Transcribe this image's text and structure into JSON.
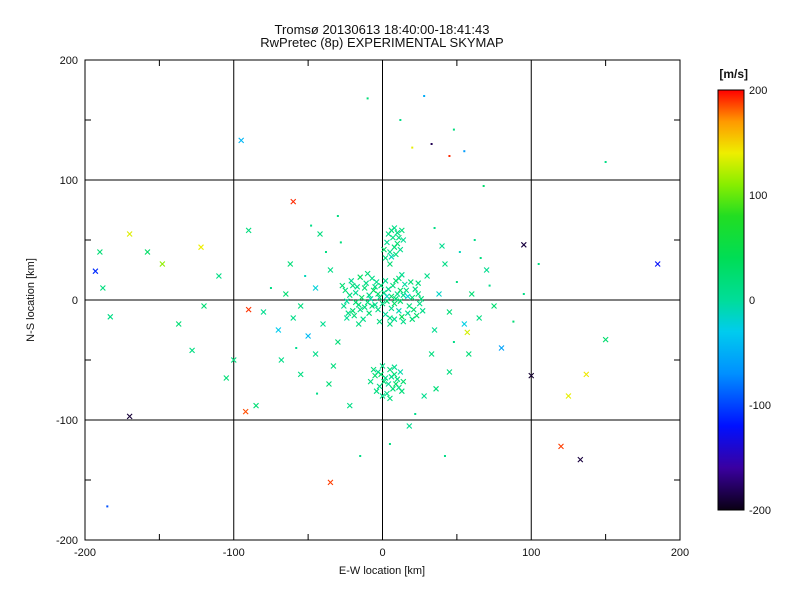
{
  "title": {
    "line1": "Tromsø 20130613 18:40:00-18:41:43",
    "line2": "RwPretec (8p) EXPERIMENTAL SKYMAP"
  },
  "plot": {
    "background": "#ffffff",
    "frame_color": "#000000",
    "xlabel": "E-W location [km]",
    "ylabel": "N-S location [km]",
    "x_tick_labels": [
      "-200",
      "-100",
      "0",
      "100",
      "200"
    ],
    "y_tick_labels": [
      "200",
      "100",
      "0",
      "-100",
      "-200"
    ]
  },
  "colorbar": {
    "title": "[m/s]",
    "title_color": "#cc0000",
    "tick_labels": [
      "200",
      "100",
      "0",
      "-100",
      "-200"
    ]
  },
  "chart_data": {
    "type": "scatter",
    "title": "Tromsø 20130613 18:40:00-18:41:43 / RwPretec (8p) EXPERIMENTAL SKYMAP",
    "xlabel": "E-W location [km]",
    "ylabel": "N-S location [km]",
    "xlim": [
      -200,
      200
    ],
    "ylim": [
      -200,
      200
    ],
    "grid_lines": [
      -100,
      0,
      100
    ],
    "major_ticks": [
      -200,
      -100,
      0,
      100,
      200
    ],
    "minor_tick_step": 50,
    "legend_position": "none",
    "color_scale": {
      "label": "[m/s]",
      "range": [
        -200,
        200
      ],
      "ticks": [
        200,
        100,
        0,
        -100,
        -200
      ],
      "stops": [
        {
          "value": -200,
          "color": "#0a0014"
        },
        {
          "value": -160,
          "color": "#3a00a0"
        },
        {
          "value": -120,
          "color": "#0010ff"
        },
        {
          "value": -70,
          "color": "#0090ff"
        },
        {
          "value": -30,
          "color": "#00ccee"
        },
        {
          "value": 0,
          "color": "#00dd99"
        },
        {
          "value": 40,
          "color": "#00dd55"
        },
        {
          "value": 80,
          "color": "#22dd22"
        },
        {
          "value": 110,
          "color": "#88ee00"
        },
        {
          "value": 140,
          "color": "#eeee00"
        },
        {
          "value": 170,
          "color": "#ff9900"
        },
        {
          "value": 200,
          "color": "#ff0000"
        }
      ]
    },
    "point_format": [
      "x_km",
      "y_km",
      "velocity_ms",
      "marker(1=cross,0=dot,default 1)"
    ],
    "points": [
      [
        -2,
        2,
        10
      ],
      [
        3,
        -1,
        22
      ],
      [
        -5,
        -4,
        5
      ],
      [
        1,
        6,
        15
      ],
      [
        6,
        3,
        28
      ],
      [
        -8,
        1,
        -5
      ],
      [
        -3,
        -8,
        12
      ],
      [
        8,
        -3,
        30
      ],
      [
        -10,
        -2,
        18
      ],
      [
        4,
        9,
        6
      ],
      [
        -1,
        12,
        20
      ],
      [
        10,
        5,
        12
      ],
      [
        -6,
        8,
        35
      ],
      [
        2,
        -12,
        0
      ],
      [
        -12,
        -6,
        16
      ],
      [
        12,
        -1,
        25
      ],
      [
        -4,
        15,
        8
      ],
      [
        7,
        12,
        18
      ],
      [
        -9,
        -11,
        22
      ],
      [
        14,
        4,
        5
      ],
      [
        -14,
        2,
        30
      ],
      [
        5,
        -15,
        12
      ],
      [
        -2,
        -18,
        16
      ],
      [
        11,
        -9,
        -8
      ],
      [
        -16,
        -4,
        20
      ],
      [
        9,
        16,
        26
      ],
      [
        -7,
        18,
        10
      ],
      [
        16,
        8,
        14
      ],
      [
        -18,
        6,
        4
      ],
      [
        13,
        -14,
        36
      ],
      [
        -11,
        14,
        12
      ],
      [
        18,
        -5,
        18
      ],
      [
        -20,
        -9,
        24
      ],
      [
        15,
        13,
        -2
      ],
      [
        -13,
        -16,
        10
      ],
      [
        20,
        2,
        20
      ],
      [
        -22,
        4,
        15
      ],
      [
        17,
        -11,
        6
      ],
      [
        -15,
        19,
        32
      ],
      [
        22,
        9,
        12
      ],
      [
        -19,
        -13,
        18
      ],
      [
        19,
        15,
        22
      ],
      [
        -24,
        -1,
        0
      ],
      [
        21,
        -8,
        26
      ],
      [
        -17,
        11,
        8
      ],
      [
        24,
        5,
        16
      ],
      [
        -21,
        16,
        5
      ],
      [
        23,
        -13,
        30
      ],
      [
        -25,
        8,
        20
      ],
      [
        25,
        -3,
        12
      ],
      [
        0,
        -3,
        14
      ],
      [
        -3,
        5,
        24
      ],
      [
        6,
        -7,
        8
      ],
      [
        -7,
        -5,
        18
      ],
      [
        3,
        3,
        -12
      ],
      [
        9,
        1,
        20
      ],
      [
        -5,
        11,
        14
      ],
      [
        2,
        16,
        6
      ],
      [
        12,
        8,
        28
      ],
      [
        -9,
        4,
        10
      ],
      [
        5,
        -20,
        16
      ],
      [
        -12,
        10,
        22
      ],
      [
        8,
        -16,
        4
      ],
      [
        -15,
        -8,
        14
      ],
      [
        11,
        18,
        18
      ],
      [
        -18,
        -2,
        26
      ],
      [
        14,
        -18,
        10
      ],
      [
        -20,
        12,
        16
      ],
      [
        17,
        3,
        -20
      ],
      [
        -23,
        -11,
        12
      ],
      [
        26,
        1,
        18
      ],
      [
        -26,
        -5,
        8
      ],
      [
        20,
        -16,
        22
      ],
      [
        -16,
        -20,
        14
      ],
      [
        13,
        21,
        6
      ],
      [
        -10,
        22,
        20
      ],
      [
        27,
        -9,
        10
      ],
      [
        -27,
        12,
        24
      ],
      [
        24,
        14,
        16
      ],
      [
        -24,
        -15,
        4
      ],
      [
        0,
        -55,
        12
      ],
      [
        5,
        -58,
        18
      ],
      [
        -3,
        -60,
        6
      ],
      [
        8,
        -62,
        22
      ],
      [
        2,
        -65,
        10
      ],
      [
        -5,
        -63,
        26
      ],
      [
        10,
        -66,
        14
      ],
      [
        4,
        -70,
        4
      ],
      [
        -2,
        -72,
        12
      ],
      [
        7,
        -74,
        20
      ],
      [
        12,
        -60,
        -6
      ],
      [
        -8,
        -68,
        16
      ],
      [
        3,
        -78,
        10
      ],
      [
        9,
        -70,
        30
      ],
      [
        -4,
        -76,
        14
      ],
      [
        6,
        -64,
        8
      ],
      [
        1,
        -68,
        22
      ],
      [
        11,
        -73,
        12
      ],
      [
        -6,
        -58,
        18
      ],
      [
        14,
        -68,
        26
      ],
      [
        0,
        -80,
        10
      ],
      [
        5,
        -82,
        16
      ],
      [
        -1,
        -62,
        28
      ],
      [
        8,
        -56,
        6
      ],
      [
        13,
        -76,
        18
      ],
      [
        2,
        35,
        16
      ],
      [
        5,
        40,
        10
      ],
      [
        8,
        44,
        22
      ],
      [
        3,
        48,
        6
      ],
      [
        7,
        52,
        14
      ],
      [
        10,
        47,
        26
      ],
      [
        4,
        55,
        12
      ],
      [
        9,
        38,
        18
      ],
      [
        6,
        58,
        20
      ],
      [
        12,
        42,
        8
      ],
      [
        1,
        42,
        30
      ],
      [
        11,
        52,
        16
      ],
      [
        14,
        50,
        4
      ],
      [
        8,
        60,
        10
      ],
      [
        5,
        30,
        22
      ],
      [
        10,
        56,
        14
      ],
      [
        6,
        36,
        -10
      ],
      [
        13,
        58,
        18
      ],
      [
        -35,
        25,
        12,
        1
      ],
      [
        -45,
        10,
        -22,
        1
      ],
      [
        -55,
        -5,
        16,
        1
      ],
      [
        -40,
        -20,
        6,
        1
      ],
      [
        -30,
        -35,
        20,
        1
      ],
      [
        -50,
        -30,
        -42,
        1
      ],
      [
        -60,
        -15,
        10,
        1
      ],
      [
        -38,
        40,
        14,
        0
      ],
      [
        -52,
        20,
        -12,
        0
      ],
      [
        -65,
        5,
        24,
        1
      ],
      [
        -45,
        -45,
        10,
        1
      ],
      [
        -33,
        -55,
        16,
        1
      ],
      [
        -58,
        -40,
        6,
        0
      ],
      [
        -70,
        -25,
        -30,
        1
      ],
      [
        -62,
        30,
        20,
        1
      ],
      [
        -75,
        10,
        12,
        0
      ],
      [
        -42,
        55,
        16,
        1
      ],
      [
        -68,
        -50,
        10,
        1
      ],
      [
        -80,
        -10,
        6,
        1
      ],
      [
        -36,
        -70,
        20,
        1
      ],
      [
        30,
        20,
        10,
        1
      ],
      [
        38,
        5,
        -16,
        1
      ],
      [
        45,
        -10,
        20,
        1
      ],
      [
        35,
        -25,
        6,
        1
      ],
      [
        50,
        15,
        14,
        0
      ],
      [
        42,
        30,
        12,
        1
      ],
      [
        55,
        -20,
        -26,
        1
      ],
      [
        33,
        -45,
        16,
        1
      ],
      [
        48,
        -35,
        10,
        0
      ],
      [
        60,
        5,
        22,
        1
      ],
      [
        40,
        45,
        6,
        1
      ],
      [
        52,
        40,
        -12,
        0
      ],
      [
        65,
        -15,
        14,
        1
      ],
      [
        35,
        60,
        12,
        0
      ],
      [
        58,
        -45,
        20,
        1
      ],
      [
        70,
        25,
        6,
        1
      ],
      [
        45,
        -60,
        16,
        1
      ],
      [
        62,
        50,
        10,
        0
      ],
      [
        28,
        -80,
        6,
        1
      ],
      [
        75,
        -5,
        24,
        1
      ],
      [
        -28,
        48,
        18,
        0
      ],
      [
        -48,
        62,
        10,
        0
      ],
      [
        -30,
        70,
        14,
        0
      ],
      [
        -22,
        -88,
        12,
        1
      ],
      [
        22,
        -95,
        8,
        0
      ],
      [
        36,
        -74,
        18,
        1
      ],
      [
        -55,
        -62,
        14,
        1
      ],
      [
        -44,
        -78,
        10,
        0
      ],
      [
        66,
        35,
        16,
        0
      ],
      [
        72,
        12,
        8,
        0
      ],
      [
        -190,
        40,
        22,
        1
      ],
      [
        -193,
        24,
        -110,
        1
      ],
      [
        -188,
        10,
        16,
        1
      ],
      [
        -183,
        -14,
        12,
        1
      ],
      [
        -170,
        55,
        135,
        1
      ],
      [
        -158,
        40,
        30,
        1
      ],
      [
        -148,
        30,
        112,
        1
      ],
      [
        -122,
        44,
        140,
        1
      ],
      [
        -95,
        133,
        -45,
        1
      ],
      [
        -137,
        -20,
        22,
        1
      ],
      [
        -170,
        -97,
        -190,
        1
      ],
      [
        -92,
        -93,
        185,
        1
      ],
      [
        -85,
        -88,
        22,
        1
      ],
      [
        -60,
        82,
        192,
        1
      ],
      [
        -100,
        -50,
        16,
        1
      ],
      [
        -35,
        -152,
        188,
        1
      ],
      [
        -15,
        -130,
        12,
        0
      ],
      [
        5,
        -120,
        14,
        0
      ],
      [
        18,
        -105,
        6,
        1
      ],
      [
        -10,
        168,
        20,
        0
      ],
      [
        28,
        170,
        -52,
        0
      ],
      [
        12,
        150,
        12,
        0
      ],
      [
        20,
        127,
        138,
        0
      ],
      [
        33,
        130,
        -182,
        0
      ],
      [
        45,
        120,
        192,
        0
      ],
      [
        55,
        124,
        -62,
        0
      ],
      [
        68,
        95,
        26,
        0
      ],
      [
        95,
        46,
        -188,
        1
      ],
      [
        185,
        30,
        -122,
        1
      ],
      [
        150,
        -33,
        26,
        1
      ],
      [
        100,
        -63,
        -192,
        1
      ],
      [
        125,
        -80,
        138,
        1
      ],
      [
        137,
        -62,
        142,
        1
      ],
      [
        120,
        -122,
        188,
        1
      ],
      [
        133,
        -133,
        -188,
        1
      ],
      [
        88,
        -18,
        22,
        0
      ],
      [
        95,
        5,
        12,
        0
      ],
      [
        80,
        -40,
        -58,
        1
      ],
      [
        57,
        -27,
        132,
        1
      ],
      [
        105,
        30,
        16,
        0
      ],
      [
        -120,
        -5,
        22,
        1
      ],
      [
        -110,
        20,
        12,
        1
      ],
      [
        -90,
        58,
        16,
        1
      ],
      [
        -105,
        -65,
        20,
        1
      ],
      [
        -185,
        -172,
        -95,
        0
      ],
      [
        -90,
        -8,
        190,
        1
      ],
      [
        42,
        -130,
        10,
        0
      ],
      [
        -128,
        -42,
        14,
        1
      ],
      [
        150,
        115,
        12,
        0
      ],
      [
        48,
        142,
        16,
        0
      ]
    ]
  }
}
